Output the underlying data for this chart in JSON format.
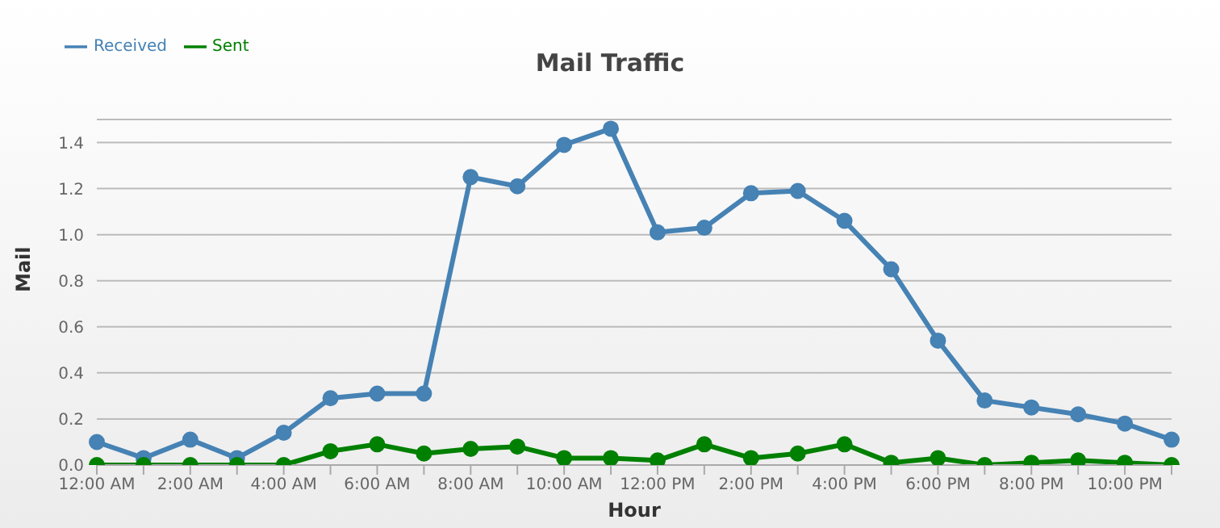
{
  "chart_data": {
    "type": "line",
    "title": "Mail Traffic",
    "xlabel": "Hour",
    "ylabel": "Mail",
    "categories": [
      "12:00 AM",
      null,
      "2:00 AM",
      null,
      "4:00 AM",
      null,
      "6:00 AM",
      null,
      "8:00 AM",
      null,
      "10:00 AM",
      null,
      "12:00 PM",
      null,
      "2:00 PM",
      null,
      "4:00 PM",
      null,
      "6:00 PM",
      null,
      "8:00 PM",
      null,
      "10:00 PM",
      null
    ],
    "series": [
      {
        "name": "Received",
        "color": "#4682b4",
        "values": [
          0.1,
          0.03,
          0.11,
          0.03,
          0.14,
          0.29,
          0.31,
          0.31,
          1.25,
          1.21,
          1.39,
          1.46,
          1.01,
          1.03,
          1.18,
          1.19,
          1.06,
          0.85,
          0.54,
          0.28,
          0.25,
          0.22,
          0.18,
          0.11
        ]
      },
      {
        "name": "Sent",
        "color": "#008000",
        "values": [
          0,
          0,
          0,
          0,
          0,
          0.06,
          0.09,
          0.05,
          0.07,
          0.08,
          0.03,
          0.03,
          0.02,
          0.09,
          0.03,
          0.05,
          0.09,
          0.01,
          0.03,
          0,
          0.01,
          0.02,
          0.01,
          0
        ]
      }
    ],
    "ylim": [
      0,
      1.5
    ],
    "yticks": [
      {
        "value": 0,
        "label": "0.0"
      },
      {
        "value": 0.2,
        "label": "0.2"
      },
      {
        "value": 0.4,
        "label": "0.4"
      },
      {
        "value": 0.6,
        "label": "0.6"
      },
      {
        "value": 0.8,
        "label": "0.8"
      },
      {
        "value": 1,
        "label": "1.0"
      },
      {
        "value": 1.2,
        "label": "1.2"
      },
      {
        "value": 1.4,
        "label": "1.4"
      }
    ],
    "grid": "y",
    "legend": "top left",
    "marker": "circle",
    "line_style": "solid"
  }
}
